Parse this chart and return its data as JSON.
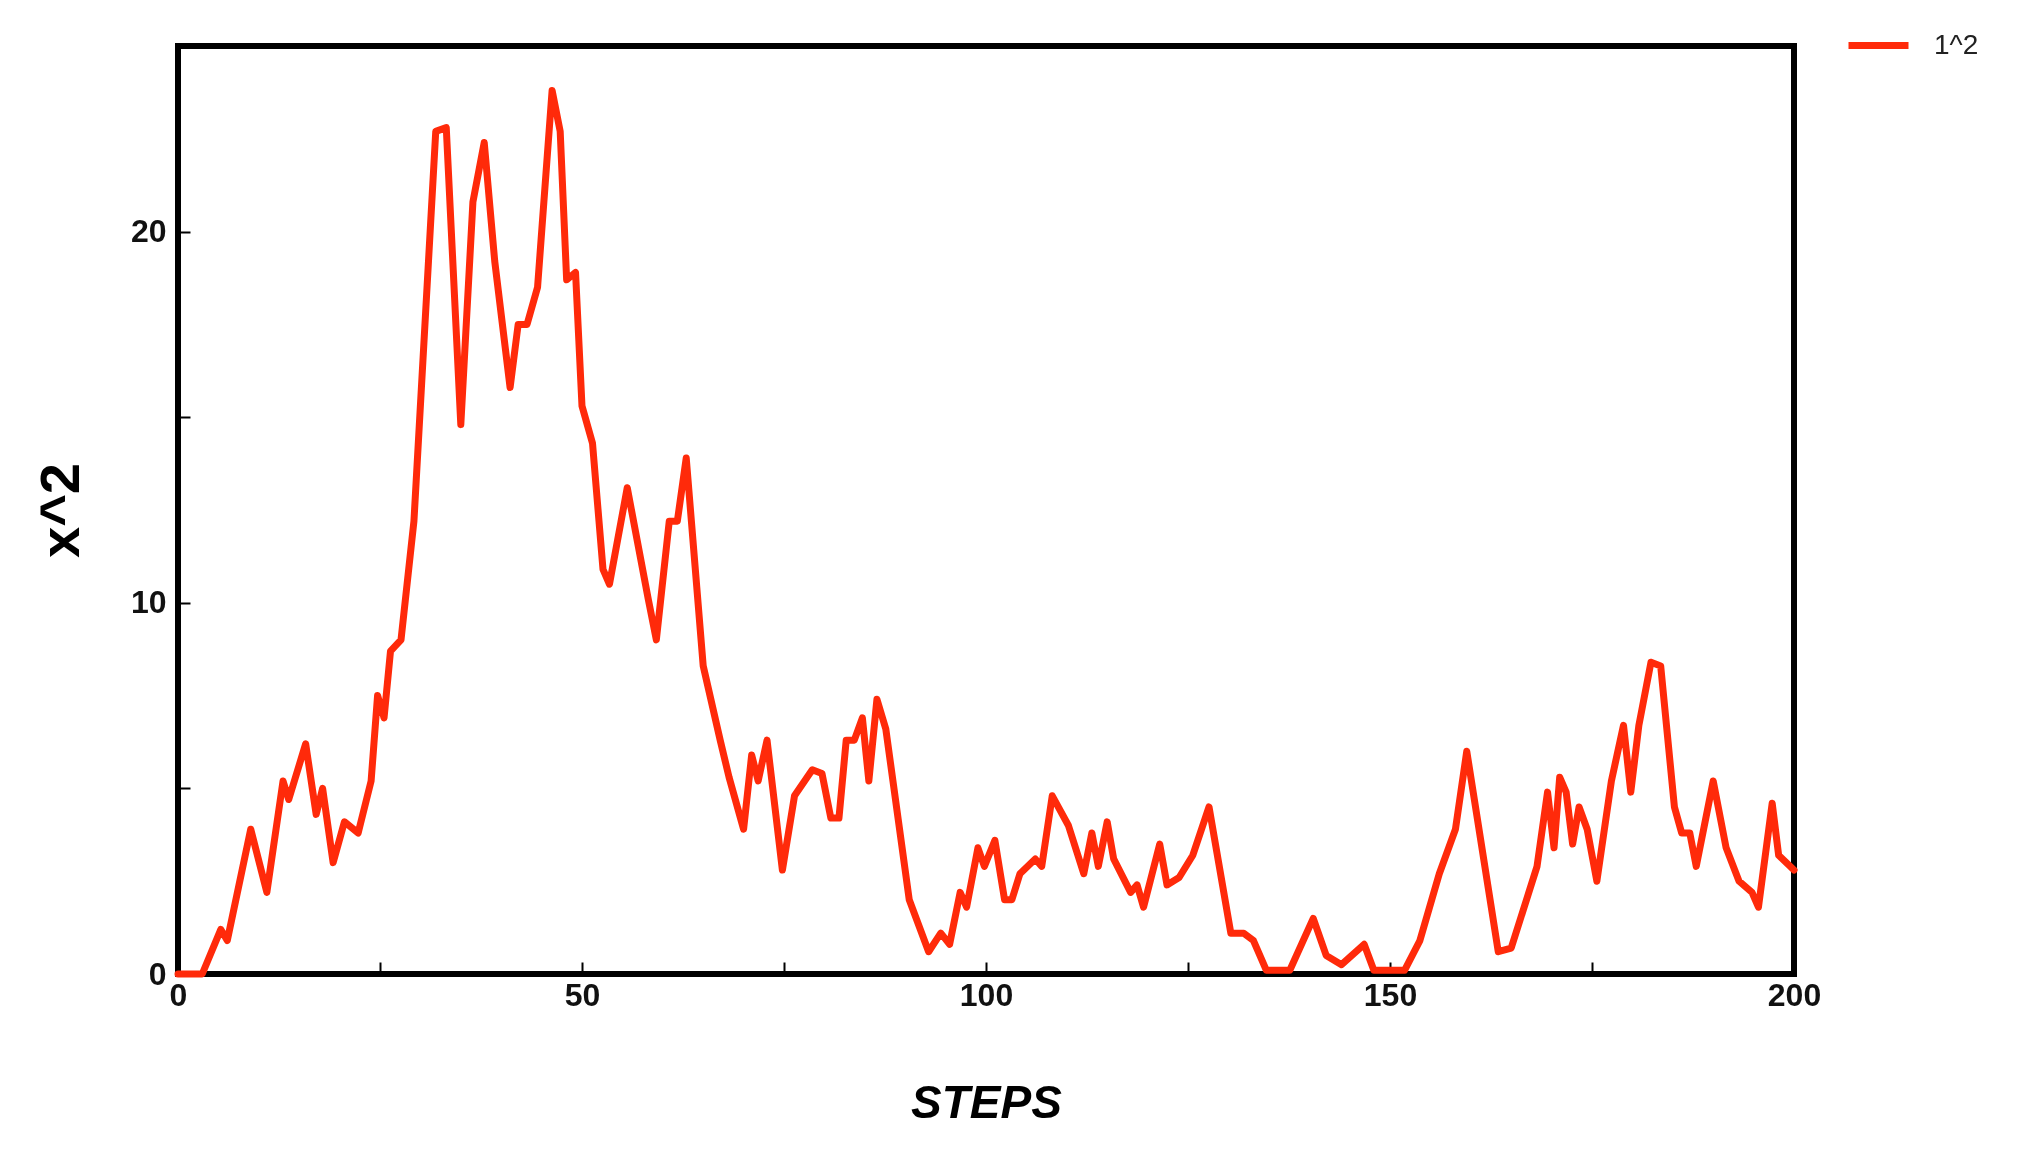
{
  "chart_data": {
    "type": "line",
    "xlabel": "STEPS",
    "ylabel": "x^2",
    "xlim": [
      0,
      200
    ],
    "ylim": [
      0,
      25
    ],
    "xticks": [
      0,
      {
        "value": 25,
        "label": null
      },
      50,
      {
        "value": 75,
        "label": null
      },
      100,
      {
        "value": 125,
        "label": null
      },
      150,
      {
        "value": 175,
        "label": null
      },
      200
    ],
    "yticks": [
      0,
      {
        "value": 5,
        "label": null
      },
      10,
      {
        "value": 15,
        "label": null
      },
      20
    ],
    "legend": "top right",
    "grid": false,
    "marker": "none",
    "line_style": "solid",
    "x": [
      0,
      3,
      5.3,
      6.1,
      9,
      11,
      13,
      13.7,
      15.8,
      17.1,
      17.9,
      19.2,
      20.6,
      22.3,
      23.9,
      24.7,
      25.5,
      26.3,
      27.6,
      29.2,
      31.9,
      33.2,
      35,
      36.5,
      37.9,
      39.2,
      41.1,
      42.1,
      43.2,
      44.5,
      46.3,
      47.3,
      48.1,
      49.2,
      50,
      51.3,
      52.6,
      53.4,
      55.6,
      58.2,
      59.2,
      60.8,
      61.8,
      62.9,
      65,
      67.1,
      68.2,
      70,
      71,
      71.8,
      72.9,
      74.8,
      76.3,
      78.5,
      79.7,
      80.8,
      81.8,
      82.7,
      83.7,
      84.7,
      85.5,
      86.5,
      87.6,
      90.5,
      92.9,
      94.4,
      95.5,
      96.8,
      97.6,
      99,
      99.8,
      101.1,
      102.3,
      103.2,
      104.2,
      106.1,
      106.9,
      108.2,
      110.2,
      112.1,
      113.1,
      113.9,
      115,
      115.8,
      117.9,
      118.7,
      119.5,
      121.5,
      122.4,
      123.9,
      125.6,
      127.6,
      130.3,
      131.9,
      133.1,
      134.7,
      137.6,
      140.5,
      142.1,
      144,
      146.8,
      148,
      151.8,
      153.7,
      156.1,
      158.1,
      159.5,
      163.4,
      165,
      168.2,
      169.5,
      170.3,
      171,
      171.8,
      172.6,
      173.4,
      174.4,
      175.6,
      177.4,
      178.9,
      179.8,
      180.8,
      182.3,
      183.5,
      185.2,
      186.1,
      187.1,
      187.9,
      190,
      191.6,
      193.2,
      194.8,
      195.6,
      197.3,
      198.1,
      200
    ],
    "series": [
      {
        "name": "1^2",
        "color": "#ff2a0a",
        "values": [
          0,
          0,
          1.2,
          0.9,
          3.9,
          2.2,
          5.2,
          4.7,
          6.2,
          4.3,
          5.0,
          3.0,
          4.1,
          3.8,
          5.2,
          7.5,
          6.9,
          8.7,
          9.0,
          12.2,
          22.7,
          22.8,
          14.8,
          20.8,
          22.4,
          19.2,
          15.8,
          17.5,
          17.5,
          18.5,
          23.8,
          22.7,
          18.7,
          18.9,
          15.3,
          14.3,
          10.9,
          10.5,
          13.1,
          10.1,
          9.0,
          12.2,
          12.2,
          13.9,
          8.3,
          6.3,
          5.3,
          3.9,
          5.9,
          5.2,
          6.3,
          2.8,
          4.8,
          5.5,
          5.4,
          4.2,
          4.2,
          6.3,
          6.3,
          6.9,
          5.2,
          7.4,
          6.6,
          2.0,
          0.6,
          1.1,
          0.8,
          2.2,
          1.8,
          3.4,
          2.9,
          3.6,
          2.0,
          2.0,
          2.7,
          3.1,
          2.9,
          4.8,
          4.0,
          2.7,
          3.8,
          2.9,
          4.1,
          3.1,
          2.2,
          2.4,
          1.8,
          3.5,
          2.4,
          2.6,
          3.2,
          4.5,
          1.1,
          1.1,
          0.9,
          0.1,
          0.1,
          1.5,
          0.5,
          0.25,
          0.8,
          0.1,
          0.1,
          0.9,
          2.7,
          3.9,
          6.0,
          0.6,
          0.7,
          2.9,
          4.9,
          3.4,
          5.3,
          4.9,
          3.5,
          4.5,
          3.9,
          2.5,
          5.2,
          6.7,
          4.9,
          6.7,
          8.4,
          8.3,
          4.5,
          3.8,
          3.8,
          2.9,
          5.2,
          3.4,
          2.5,
          2.2,
          1.8,
          4.6,
          3.2,
          2.8
        ]
      }
    ]
  }
}
